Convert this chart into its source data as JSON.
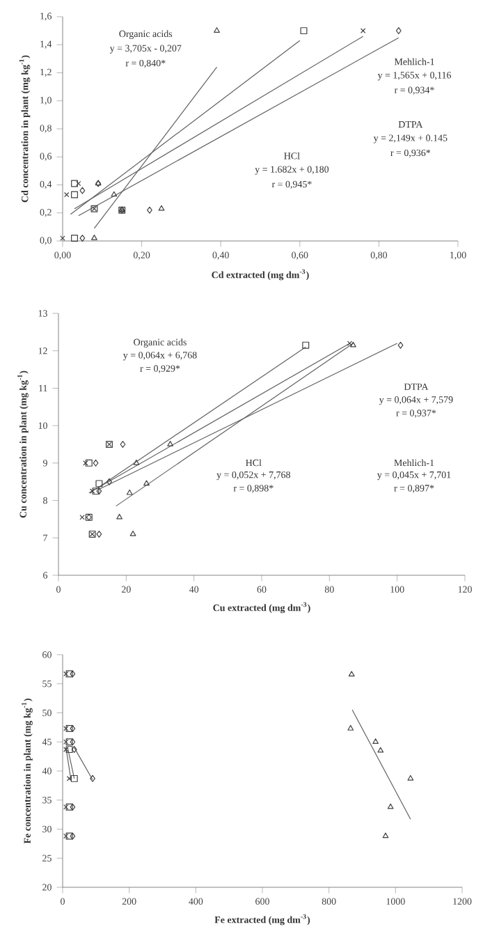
{
  "chart_data": [
    {
      "type": "scatter",
      "xlabel": "Cd extracted (mg dm$^{-3}$)",
      "ylabel": "Cd concentration in plant (mg kg$^{-1}$)",
      "xlim": [
        0,
        1
      ],
      "ylim": [
        0,
        1.6
      ],
      "xticks": [
        {
          "value": 0,
          "label": "0,00"
        },
        {
          "value": 0.2,
          "label": "0,20"
        },
        {
          "value": 0.4,
          "label": "0,40"
        },
        {
          "value": 0.6,
          "label": "0,60"
        },
        {
          "value": 0.8,
          "label": "0,80"
        },
        {
          "value": 1,
          "label": "1,00"
        }
      ],
      "yticks": [
        {
          "value": 0,
          "label": "0,0"
        },
        {
          "value": 0.2,
          "label": "0,2"
        },
        {
          "value": 0.4,
          "label": "0,4"
        },
        {
          "value": 0.6,
          "label": "0,6"
        },
        {
          "value": 0.8,
          "label": "0,8"
        },
        {
          "value": 1,
          "label": "1,0"
        },
        {
          "value": 1.2,
          "label": "1,2"
        },
        {
          "value": 1.4,
          "label": "1,4"
        },
        {
          "value": 1.6,
          "label": "1,6"
        }
      ],
      "series": [
        {
          "marker": "triangle",
          "color": "#404040",
          "x": [
            0.39,
            0.25,
            0.13,
            0.09,
            0.08,
            0.15
          ],
          "values": [
            1.5,
            0.23,
            0.33,
            0.41,
            0.02,
            0.22
          ]
        },
        {
          "marker": "square",
          "color": "#404040",
          "x": [
            0.61,
            0.03,
            0.03,
            0.08,
            0.15,
            0.03
          ],
          "values": [
            1.5,
            0.02,
            0.41,
            0.23,
            0.22,
            0.33
          ]
        },
        {
          "marker": "cross",
          "color": "#404040",
          "x": [
            0.76,
            0.0,
            0.04,
            0.08,
            0.15,
            0.01
          ],
          "values": [
            1.5,
            0.02,
            0.41,
            0.23,
            0.22,
            0.33
          ]
        },
        {
          "marker": "diamond",
          "color": "#404040",
          "x": [
            0.85,
            0.05,
            0.09,
            0.22,
            0.05,
            0.15
          ],
          "values": [
            1.5,
            0.02,
            0.41,
            0.22,
            0.36,
            0.22
          ]
        },
        {
          "type": "line",
          "marker": "none",
          "color": "#606060",
          "x": [
            0.08,
            0.39
          ],
          "values": [
            0.09,
            1.24
          ]
        },
        {
          "type": "line",
          "marker": "none",
          "color": "#606060",
          "x": [
            0.02,
            0.6
          ],
          "values": [
            0.19,
            1.43
          ]
        },
        {
          "type": "line",
          "marker": "none",
          "color": "#606060",
          "x": [
            0.03,
            0.76
          ],
          "values": [
            0.23,
            1.46
          ]
        },
        {
          "type": "line",
          "marker": "none",
          "color": "#606060",
          "x": [
            0.04,
            0.85
          ],
          "values": [
            0.18,
            1.45
          ]
        }
      ],
      "annotations": [
        "Organic acids",
        "y = 3,705x - 0,207",
        "r = 0,840*",
        "Mehlich-1",
        "y = 1,565x + 0,116",
        "r = 0,934*",
        "DTPA",
        "y = 2,149x + 0.145",
        "r = 0,936*",
        "HCl",
        "y = 1.682x + 0,180",
        "r = 0,945*"
      ]
    },
    {
      "type": "scatter",
      "xlabel": "Cu extracted (mg dm$^{-3}$)",
      "ylabel": "Cu concentration in plant (mg kg$^{-1}$)",
      "xlim": [
        0,
        120
      ],
      "ylim": [
        6,
        13
      ],
      "xticks": [
        0,
        20,
        40,
        60,
        80,
        100,
        120
      ],
      "yticks": [
        6,
        7,
        8,
        9,
        10,
        11,
        12,
        13
      ],
      "series": [
        {
          "marker": "square",
          "color": "#404040",
          "x": [
            73,
            12,
            9,
            10,
            9,
            15,
            11
          ],
          "values": [
            12.15,
            8.45,
            9,
            7.1,
            7.55,
            9.5,
            8.25
          ]
        },
        {
          "marker": "cross",
          "color": "#404040",
          "x": [
            86,
            15,
            8,
            10,
            7,
            10
          ],
          "values": [
            12.2,
            9.5,
            9,
            8.25,
            7.55,
            7.1
          ]
        },
        {
          "marker": "diamond",
          "color": "#404040",
          "x": [
            101,
            19,
            11,
            15,
            9,
            12,
            12
          ],
          "values": [
            12.15,
            9.5,
            9,
            8.5,
            7.55,
            7.1,
            8.25
          ]
        },
        {
          "marker": "triangle",
          "color": "#404040",
          "x": [
            87,
            33,
            23,
            26,
            21,
            18,
            22
          ],
          "values": [
            12.15,
            9.5,
            9,
            8.45,
            8.2,
            7.55,
            7.1
          ]
        },
        {
          "type": "line",
          "marker": "none",
          "color": "#606060",
          "x": [
            11,
            73
          ],
          "values": [
            8.3,
            12.1
          ]
        },
        {
          "type": "line",
          "marker": "none",
          "color": "#606060",
          "x": [
            9,
            86
          ],
          "values": [
            8.2,
            12.2
          ]
        },
        {
          "type": "line",
          "marker": "none",
          "color": "#606060",
          "x": [
            12,
            100
          ],
          "values": [
            8.3,
            12.2
          ]
        },
        {
          "type": "line",
          "marker": "none",
          "color": "#606060",
          "x": [
            17,
            87
          ],
          "values": [
            7.85,
            12.2
          ]
        }
      ],
      "annotations": [
        "Organic acids",
        "y = 0,064x + 6,768",
        "r = 0,929*",
        "DTPA",
        "y = 0,064x + 7,579",
        "r = 0,937*",
        "HCl",
        "y = 0,052x + 7,768",
        "r = 0,898*",
        "Mehlich-1",
        "y = 0,045x + 7,701",
        "r = 0,897*"
      ]
    },
    {
      "type": "scatter",
      "xlabel": "Fe extracted (mg dm$^{-3}$)",
      "ylabel": "Fe concentration in plant (mg kg$^{-1}$)",
      "xlim": [
        0,
        1200
      ],
      "ylim": [
        20,
        60
      ],
      "xticks": [
        0,
        200,
        400,
        600,
        800,
        1000,
        1200
      ],
      "yticks": [
        20,
        25,
        30,
        35,
        40,
        45,
        50,
        55,
        60
      ],
      "series": [
        {
          "marker": "cross",
          "color": "#404040",
          "x": [
            10,
            10,
            10,
            10,
            20,
            10,
            10
          ],
          "values": [
            56.7,
            47.3,
            45,
            43.7,
            38.7,
            33.8,
            28.8
          ]
        },
        {
          "marker": "square",
          "color": "#404040",
          "x": [
            20,
            20,
            20,
            20,
            35,
            20,
            20
          ],
          "values": [
            56.7,
            47.3,
            45,
            43.7,
            38.7,
            33.8,
            28.8
          ]
        },
        {
          "marker": "diamond",
          "color": "#404040",
          "x": [
            30,
            30,
            30,
            35,
            90,
            30,
            30
          ],
          "values": [
            56.7,
            47.3,
            45,
            43.7,
            38.7,
            33.8,
            28.8
          ]
        },
        {
          "marker": "triangle",
          "color": "#404040",
          "x": [
            868,
            865,
            940,
            955,
            1045,
            985,
            970
          ],
          "values": [
            56.6,
            47.3,
            45,
            43.5,
            38.7,
            33.8,
            28.8
          ]
        },
        {
          "type": "line",
          "marker": "none",
          "color": "#606060",
          "x": [
            10,
            25
          ],
          "values": [
            44,
            38.5
          ]
        },
        {
          "type": "line",
          "marker": "none",
          "color": "#606060",
          "x": [
            15,
            35
          ],
          "values": [
            44,
            38.7
          ]
        },
        {
          "type": "line",
          "marker": "none",
          "color": "#606060",
          "x": [
            35,
            90
          ],
          "values": [
            44,
            38.5
          ]
        },
        {
          "type": "line",
          "marker": "none",
          "color": "#606060",
          "x": [
            870,
            1045
          ],
          "values": [
            50.5,
            31.7
          ]
        }
      ]
    }
  ]
}
